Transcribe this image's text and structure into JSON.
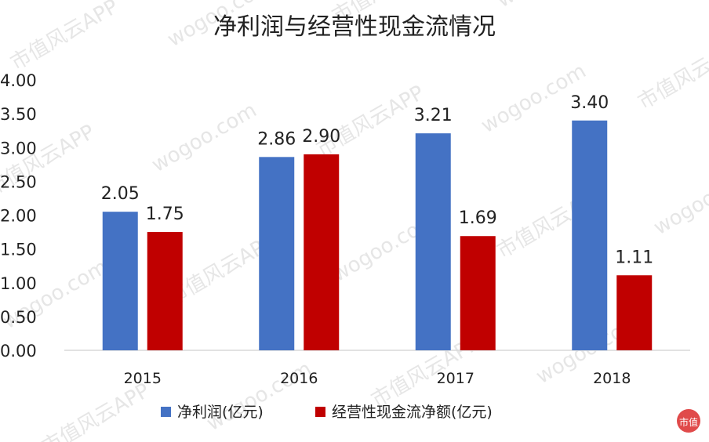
{
  "watermark": {
    "line1": "市值风云APP",
    "line2": "wogoo.com",
    "logo_text": "市值"
  },
  "chart_data": {
    "type": "bar",
    "title": "净利润与经营性现金流情况",
    "xlabel": "",
    "ylabel": "",
    "categories": [
      "2015",
      "2016",
      "2017",
      "2018"
    ],
    "series": [
      {
        "name": "净利润(亿元)",
        "color": "#4472C4",
        "values": [
          2.05,
          2.86,
          3.21,
          3.4
        ],
        "labels": [
          "2.05",
          "2.86",
          "3.21",
          "3.40"
        ]
      },
      {
        "name": "经营性现金流净额(亿元)",
        "color": "#C00000",
        "values": [
          1.75,
          2.9,
          1.69,
          1.11
        ],
        "labels": [
          "1.75",
          "2.90",
          "1.69",
          "1.11"
        ]
      }
    ],
    "ylim": [
      0,
      4.0
    ],
    "yticks": [
      "0.00",
      "0.50",
      "1.00",
      "1.50",
      "2.00",
      "2.50",
      "3.00",
      "3.50",
      "4.00"
    ],
    "grid": false,
    "legend_position": "bottom"
  }
}
